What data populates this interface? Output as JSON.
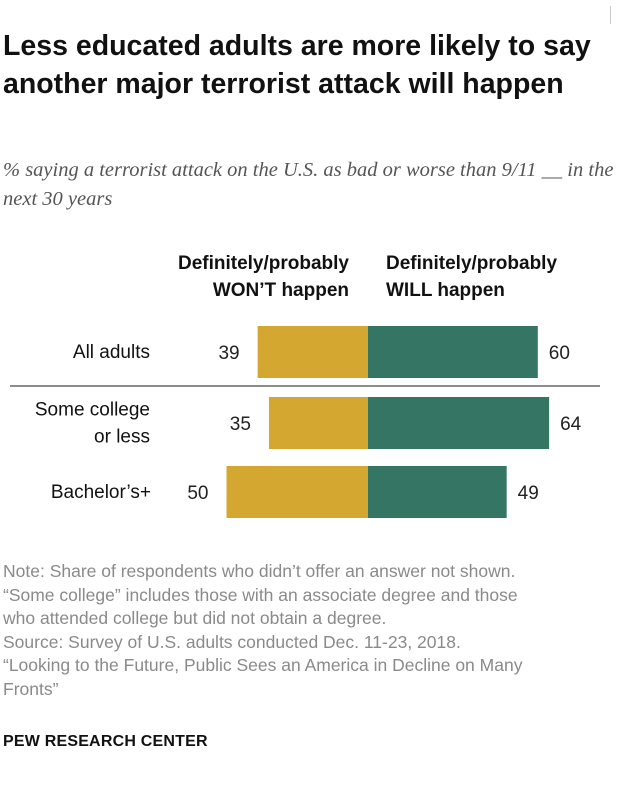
{
  "title": "Less educated adults are more likely to say another major terrorist attack will happen",
  "subtitle": "% saying a terrorist attack on the U.S. as bad or worse than 9/11 __ in the next 30 years",
  "colors": {
    "wont": "#d4a830",
    "will": "#347563",
    "divider": "#8c8c8c"
  },
  "chart_data": {
    "type": "bar",
    "orientation": "horizontal-diverging",
    "legend_placement": "top",
    "series": [
      {
        "name": "Definitely/probably WON’T happen",
        "label_lines": [
          "Definitely/probably",
          "WON’T happen"
        ],
        "values": [
          39,
          35,
          50
        ]
      },
      {
        "name": "Definitely/probably WILL happen",
        "label_lines": [
          "Definitely/probably",
          "WILL happen"
        ],
        "values": [
          60,
          64,
          49
        ]
      }
    ],
    "categories": [
      "All adults",
      "Some college or less",
      "Bachelor’s+"
    ],
    "category_lines": [
      [
        "All adults"
      ],
      [
        "Some college",
        "or less"
      ],
      [
        "Bachelor’s+"
      ]
    ],
    "divider_after_index": 0,
    "xlim": [
      -50,
      64
    ]
  },
  "notes": [
    "Note: Share of respondents who didn’t offer an answer not shown.",
    "“Some college” includes those with an associate degree and those",
    "who attended college but did not obtain a degree.",
    "Source: Survey of U.S. adults conducted Dec. 11-23, 2018.",
    "“Looking to the Future, Public Sees an America in Decline on Many",
    "Fronts”"
  ],
  "source_org": "PEW RESEARCH CENTER"
}
